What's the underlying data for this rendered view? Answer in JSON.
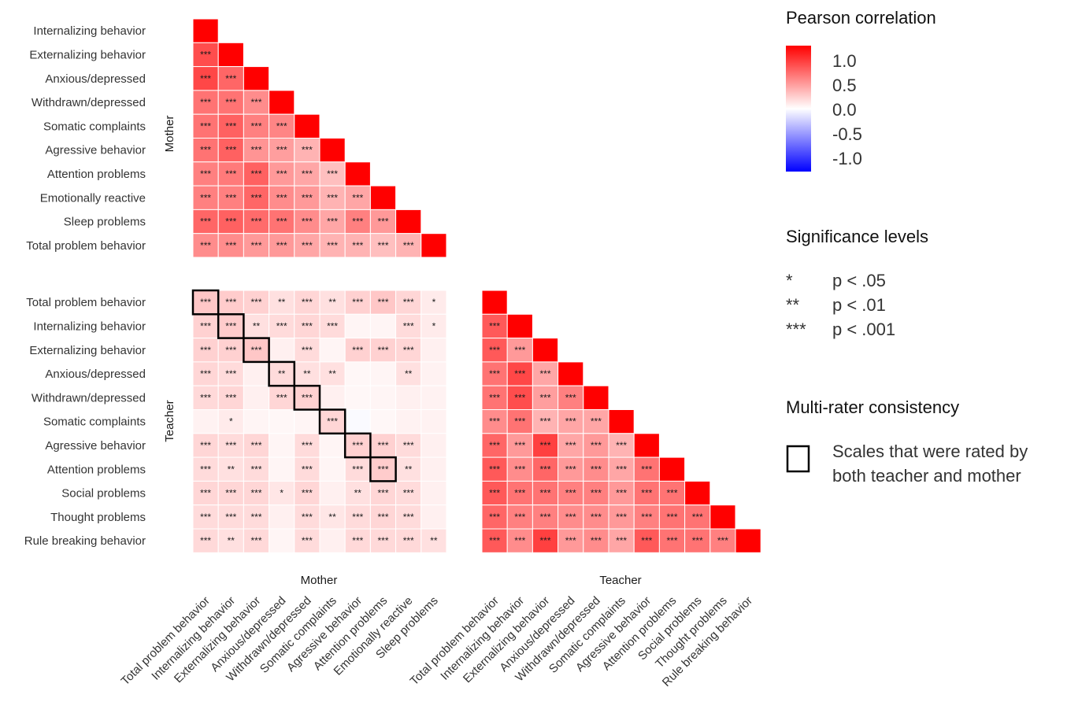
{
  "chart_data": {
    "type": "heatmap",
    "panels": [
      {
        "id": "mother",
        "row_facet": "Mother",
        "col_facet": "",
        "rows": [
          "Internalizing behavior",
          "Externalizing behavior",
          "Anxious/depressed",
          "Withdrawn/depressed",
          "Somatic complaints",
          "Agressive behavior",
          "Attention problems",
          "Emotionally reactive",
          "Sleep problems",
          "Total problem behavior"
        ],
        "cols": [
          "Total problem behavior",
          "Internalizing behavior",
          "Externalizing behavior",
          "Anxious/depressed",
          "Withdrawn/depressed",
          "Somatic complaints",
          "Agressive behavior",
          "Attention problems",
          "Emotionally reactive",
          "Sleep problems"
        ],
        "values": [
          [
            1.0,
            null,
            null,
            null,
            null,
            null,
            null,
            null,
            null,
            null
          ],
          [
            0.7,
            1.0,
            null,
            null,
            null,
            null,
            null,
            null,
            null,
            null
          ],
          [
            0.72,
            0.6,
            1.0,
            null,
            null,
            null,
            null,
            null,
            null,
            null
          ],
          [
            0.55,
            0.55,
            0.45,
            1.0,
            null,
            null,
            null,
            null,
            null,
            null
          ],
          [
            0.55,
            0.62,
            0.5,
            0.48,
            1.0,
            null,
            null,
            null,
            null,
            null
          ],
          [
            0.55,
            0.62,
            0.42,
            0.38,
            0.3,
            1.0,
            null,
            null,
            null,
            null
          ],
          [
            0.5,
            0.52,
            0.62,
            0.4,
            0.35,
            0.25,
            1.0,
            null,
            null,
            null
          ],
          [
            0.5,
            0.5,
            0.6,
            0.45,
            0.4,
            0.3,
            0.35,
            1.0,
            null,
            null
          ],
          [
            0.6,
            0.62,
            0.58,
            0.55,
            0.45,
            0.35,
            0.5,
            0.4,
            1.0,
            null
          ],
          [
            0.45,
            0.45,
            0.4,
            0.4,
            0.35,
            0.3,
            0.3,
            0.25,
            0.3,
            1.0
          ]
        ],
        "stars": [
          [
            "",
            "",
            "",
            "",
            "",
            "",
            "",
            "",
            "",
            ""
          ],
          [
            "***",
            "",
            "",
            "",
            "",
            "",
            "",
            "",
            "",
            ""
          ],
          [
            "***",
            "***",
            "",
            "",
            "",
            "",
            "",
            "",
            "",
            ""
          ],
          [
            "***",
            "***",
            "***",
            "",
            "",
            "",
            "",
            "",
            "",
            ""
          ],
          [
            "***",
            "***",
            "***",
            "***",
            "",
            "",
            "",
            "",
            "",
            ""
          ],
          [
            "***",
            "***",
            "***",
            "***",
            "***",
            "",
            "",
            "",
            "",
            ""
          ],
          [
            "***",
            "***",
            "***",
            "***",
            "***",
            "***",
            "",
            "",
            "",
            ""
          ],
          [
            "***",
            "***",
            "***",
            "***",
            "***",
            "***",
            "***",
            "",
            "",
            ""
          ],
          [
            "***",
            "***",
            "***",
            "***",
            "***",
            "***",
            "***",
            "***",
            "",
            ""
          ],
          [
            "***",
            "***",
            "***",
            "***",
            "***",
            "***",
            "***",
            "***",
            "***",
            ""
          ]
        ]
      },
      {
        "id": "teacher-mother",
        "row_facet": "Teacher",
        "col_facet": "Mother",
        "rows": [
          "Total problem behavior",
          "Internalizing behavior",
          "Externalizing behavior",
          "Anxious/depressed",
          "Withdrawn/depressed",
          "Somatic complaints",
          "Agressive behavior",
          "Attention problems",
          "Social problems",
          "Thought problems",
          "Rule breaking behavior"
        ],
        "cols": [
          "Total problem behavior",
          "Internalizing behavior",
          "Externalizing behavior",
          "Anxious/depressed",
          "Withdrawn/depressed",
          "Somatic complaints",
          "Agressive behavior",
          "Attention problems",
          "Emotionally reactive",
          "Sleep problems"
        ],
        "values": [
          [
            0.22,
            0.2,
            0.18,
            0.12,
            0.16,
            0.12,
            0.18,
            0.22,
            0.16,
            0.08
          ],
          [
            0.18,
            0.2,
            0.12,
            0.14,
            0.16,
            0.14,
            0.04,
            0.04,
            0.14,
            0.08
          ],
          [
            0.18,
            0.18,
            0.22,
            0.06,
            0.14,
            0.04,
            0.18,
            0.18,
            0.16,
            0.06
          ],
          [
            0.16,
            0.14,
            0.06,
            0.14,
            0.12,
            0.12,
            0.03,
            0.04,
            0.12,
            0.05
          ],
          [
            0.15,
            0.16,
            0.06,
            0.16,
            0.18,
            0.06,
            0.03,
            0.04,
            0.06,
            0.05
          ],
          [
            0.05,
            0.08,
            0.04,
            0.03,
            0.04,
            0.16,
            -0.02,
            0.03,
            0.05,
            0.05
          ],
          [
            0.16,
            0.14,
            0.16,
            0.04,
            0.14,
            0.04,
            0.18,
            0.18,
            0.14,
            0.06
          ],
          [
            0.14,
            0.12,
            0.14,
            0.04,
            0.14,
            0.04,
            0.14,
            0.2,
            0.12,
            0.06
          ],
          [
            0.16,
            0.16,
            0.16,
            0.1,
            0.16,
            0.06,
            0.12,
            0.16,
            0.14,
            0.06
          ],
          [
            0.14,
            0.14,
            0.14,
            0.06,
            0.14,
            0.1,
            0.14,
            0.16,
            0.14,
            0.06
          ],
          [
            0.15,
            0.12,
            0.15,
            0.04,
            0.14,
            0.06,
            0.15,
            0.15,
            0.15,
            0.12
          ]
        ],
        "stars": [
          [
            "***",
            "***",
            "***",
            "**",
            "***",
            "**",
            "***",
            "***",
            "***",
            "*"
          ],
          [
            "***",
            "***",
            "**",
            "***",
            "***",
            "***",
            "",
            "",
            "***",
            "*"
          ],
          [
            "***",
            "***",
            "***",
            "",
            "***",
            "",
            "***",
            "***",
            "***",
            ""
          ],
          [
            "***",
            "***",
            "",
            "**",
            "**",
            "**",
            "",
            "",
            "**",
            ""
          ],
          [
            "***",
            "***",
            "",
            "***",
            "***",
            "",
            "",
            "",
            "",
            ""
          ],
          [
            "",
            "*",
            "",
            "",
            "",
            "***",
            "",
            "",
            "",
            ""
          ],
          [
            "***",
            "***",
            "***",
            "",
            "***",
            "",
            "***",
            "***",
            "***",
            ""
          ],
          [
            "***",
            "**",
            "***",
            "",
            "***",
            "",
            "***",
            "***",
            "**",
            ""
          ],
          [
            "***",
            "***",
            "***",
            "*",
            "***",
            "",
            "**",
            "***",
            "***",
            ""
          ],
          [
            "***",
            "***",
            "***",
            "",
            "***",
            "**",
            "***",
            "***",
            "***",
            ""
          ],
          [
            "***",
            "**",
            "***",
            "",
            "***",
            "",
            "***",
            "***",
            "***",
            "**"
          ]
        ],
        "outlined": [
          [
            0,
            0
          ],
          [
            1,
            1
          ],
          [
            2,
            2
          ],
          [
            3,
            3
          ],
          [
            4,
            4
          ],
          [
            5,
            5
          ],
          [
            6,
            6
          ],
          [
            7,
            7
          ]
        ]
      },
      {
        "id": "teacher",
        "row_facet": "",
        "col_facet": "Teacher",
        "rows": [
          "Total problem behavior",
          "Internalizing behavior",
          "Externalizing behavior",
          "Anxious/depressed",
          "Withdrawn/depressed",
          "Somatic complaints",
          "Agressive behavior",
          "Attention problems",
          "Social problems",
          "Thought problems",
          "Rule breaking behavior"
        ],
        "cols": [
          "Total problem behavior",
          "Internalizing behavior",
          "Externalizing behavior",
          "Anxious/depressed",
          "Withdrawn/depressed",
          "Somatic complaints",
          "Agressive behavior",
          "Attention problems",
          "Social problems",
          "Thought problems",
          "Rule breaking behavior"
        ],
        "values": [
          [
            1.0,
            null,
            null,
            null,
            null,
            null,
            null,
            null,
            null,
            null,
            null
          ],
          [
            0.65,
            1.0,
            null,
            null,
            null,
            null,
            null,
            null,
            null,
            null,
            null
          ],
          [
            0.65,
            0.4,
            1.0,
            null,
            null,
            null,
            null,
            null,
            null,
            null,
            null
          ],
          [
            0.55,
            0.72,
            0.35,
            1.0,
            null,
            null,
            null,
            null,
            null,
            null,
            null
          ],
          [
            0.55,
            0.7,
            0.38,
            0.5,
            1.0,
            null,
            null,
            null,
            null,
            null,
            null
          ],
          [
            0.45,
            0.55,
            0.3,
            0.35,
            0.35,
            1.0,
            null,
            null,
            null,
            null,
            null
          ],
          [
            0.6,
            0.4,
            0.75,
            0.35,
            0.4,
            0.3,
            1.0,
            null,
            null,
            null,
            null
          ],
          [
            0.65,
            0.45,
            0.6,
            0.4,
            0.45,
            0.35,
            0.55,
            1.0,
            null,
            null,
            null
          ],
          [
            0.65,
            0.55,
            0.55,
            0.5,
            0.5,
            0.4,
            0.55,
            0.55,
            1.0,
            null,
            null
          ],
          [
            0.6,
            0.5,
            0.5,
            0.45,
            0.45,
            0.4,
            0.5,
            0.55,
            0.55,
            1.0,
            null
          ],
          [
            0.65,
            0.45,
            0.75,
            0.4,
            0.45,
            0.35,
            0.65,
            0.55,
            0.55,
            0.5,
            1.0
          ]
        ],
        "stars": [
          [
            "",
            "",
            "",
            "",
            "",
            "",
            "",
            "",
            "",
            "",
            ""
          ],
          [
            "***",
            "",
            "",
            "",
            "",
            "",
            "",
            "",
            "",
            "",
            ""
          ],
          [
            "***",
            "***",
            "",
            "",
            "",
            "",
            "",
            "",
            "",
            "",
            ""
          ],
          [
            "***",
            "***",
            "***",
            "",
            "",
            "",
            "",
            "",
            "",
            "",
            ""
          ],
          [
            "***",
            "***",
            "***",
            "***",
            "",
            "",
            "",
            "",
            "",
            "",
            ""
          ],
          [
            "***",
            "***",
            "***",
            "***",
            "***",
            "",
            "",
            "",
            "",
            "",
            ""
          ],
          [
            "***",
            "***",
            "***",
            "***",
            "***",
            "***",
            "",
            "",
            "",
            "",
            ""
          ],
          [
            "***",
            "***",
            "***",
            "***",
            "***",
            "***",
            "***",
            "",
            "",
            "",
            ""
          ],
          [
            "***",
            "***",
            "***",
            "***",
            "***",
            "***",
            "***",
            "***",
            "",
            "",
            ""
          ],
          [
            "***",
            "***",
            "***",
            "***",
            "***",
            "***",
            "***",
            "***",
            "***",
            "",
            ""
          ],
          [
            "***",
            "***",
            "***",
            "***",
            "***",
            "***",
            "***",
            "***",
            "***",
            "***",
            ""
          ]
        ]
      }
    ],
    "colorscale": {
      "title": "Pearson correlation",
      "min": -1.0,
      "max": 1.0,
      "ticks": [
        "1.0",
        "0.5",
        "0.0",
        "-0.5",
        "-1.0"
      ],
      "low_color": "#0000ff",
      "mid_color": "#ffffff",
      "high_color": "#ff0000"
    },
    "significance": {
      "title": "Significance levels",
      "items": [
        {
          "symbol": "*",
          "label": "p < .05"
        },
        {
          "symbol": "**",
          "label": "p < .01"
        },
        {
          "symbol": "***",
          "label": "p < .001"
        }
      ]
    },
    "consistency": {
      "title": "Multi-rater consistency",
      "lines": [
        "Scales that were rated by",
        "both teacher and mother"
      ]
    }
  }
}
